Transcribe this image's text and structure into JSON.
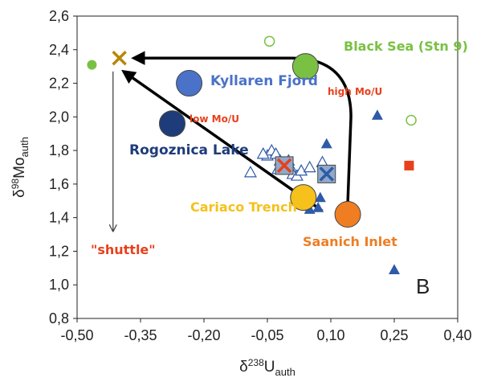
{
  "chart_data": {
    "type": "scatter",
    "panel_label": "B",
    "xlabel": "δ238Uauth",
    "ylabel": "δ98Moauth",
    "xlim": [
      -0.5,
      0.4
    ],
    "ylim": [
      0.8,
      2.6
    ],
    "x_ticks": [
      "-0,50",
      "-0,35",
      "-0,20",
      "-0,05",
      "0,10",
      "0,25",
      "0,40"
    ],
    "y_ticks": [
      "0,8",
      "1,0",
      "1,2",
      "1,4",
      "1,6",
      "1,8",
      "2,0",
      "2,2",
      "2,4",
      "2,6"
    ],
    "grid": false,
    "colors": {
      "black_sea": "#7ac143",
      "kyllaren": "#4a72c8",
      "rogoznica": "#1f3c7a",
      "cariaco": "#f5c11a",
      "saanich": "#ef7d22",
      "red_annot": "#e8401c",
      "triangle": "#2e5aa8",
      "shuttle_cross": "#b8860b"
    },
    "sites": [
      {
        "name": "Black Sea (Stn 9)",
        "x": 0.04,
        "y": 2.3,
        "color": "#7ac143"
      },
      {
        "name": "Kyllaren Fjord",
        "x": -0.235,
        "y": 2.2,
        "color": "#4a72c8"
      },
      {
        "name": "Rogoznica Lake",
        "x": -0.275,
        "y": 1.96,
        "color": "#1f3c7a"
      },
      {
        "name": "Cariaco Trench",
        "x": 0.035,
        "y": 1.52,
        "color": "#f5c11a"
      },
      {
        "name": "Saanich Inlet",
        "x": 0.14,
        "y": 1.42,
        "color": "#ef7d22"
      }
    ],
    "open_circles": [
      {
        "x": -0.045,
        "y": 2.45
      },
      {
        "x": 0.29,
        "y": 1.98
      }
    ],
    "small_green_point": {
      "x": -0.465,
      "y": 2.31
    },
    "red_square": {
      "x": 0.285,
      "y": 1.71
    },
    "crosses": [
      {
        "x": -0.4,
        "y": 2.35,
        "color": "#b8860b"
      },
      {
        "x": -0.01,
        "y": 1.71,
        "color": "#e8401c",
        "boxed": true
      },
      {
        "x": 0.09,
        "y": 1.66,
        "color": "#2e5aa8",
        "boxed": true
      }
    ],
    "filled_triangles": [
      {
        "x": 0.21,
        "y": 2.01
      },
      {
        "x": 0.09,
        "y": 1.84
      },
      {
        "x": 0.075,
        "y": 1.52
      },
      {
        "x": 0.07,
        "y": 1.46
      },
      {
        "x": 0.05,
        "y": 1.45
      },
      {
        "x": 0.25,
        "y": 1.09
      }
    ],
    "open_triangles": [
      {
        "x": -0.09,
        "y": 1.67
      },
      {
        "x": -0.05,
        "y": 1.77
      },
      {
        "x": -0.04,
        "y": 1.8
      },
      {
        "x": -0.03,
        "y": 1.78
      },
      {
        "x": -0.02,
        "y": 1.74
      },
      {
        "x": -0.015,
        "y": 1.72
      },
      {
        "x": 0.0,
        "y": 1.74
      },
      {
        "x": 0.005,
        "y": 1.7
      },
      {
        "x": 0.01,
        "y": 1.66
      },
      {
        "x": 0.02,
        "y": 1.65
      },
      {
        "x": 0.03,
        "y": 1.68
      },
      {
        "x": 0.05,
        "y": 1.7
      },
      {
        "x": 0.08,
        "y": 1.73
      },
      {
        "x": -0.06,
        "y": 1.78
      },
      {
        "x": -0.025,
        "y": 1.69
      }
    ],
    "annotations": {
      "low": "low Mo/U",
      "high": "high Mo/U",
      "shuttle": "\"shuttle\""
    }
  }
}
